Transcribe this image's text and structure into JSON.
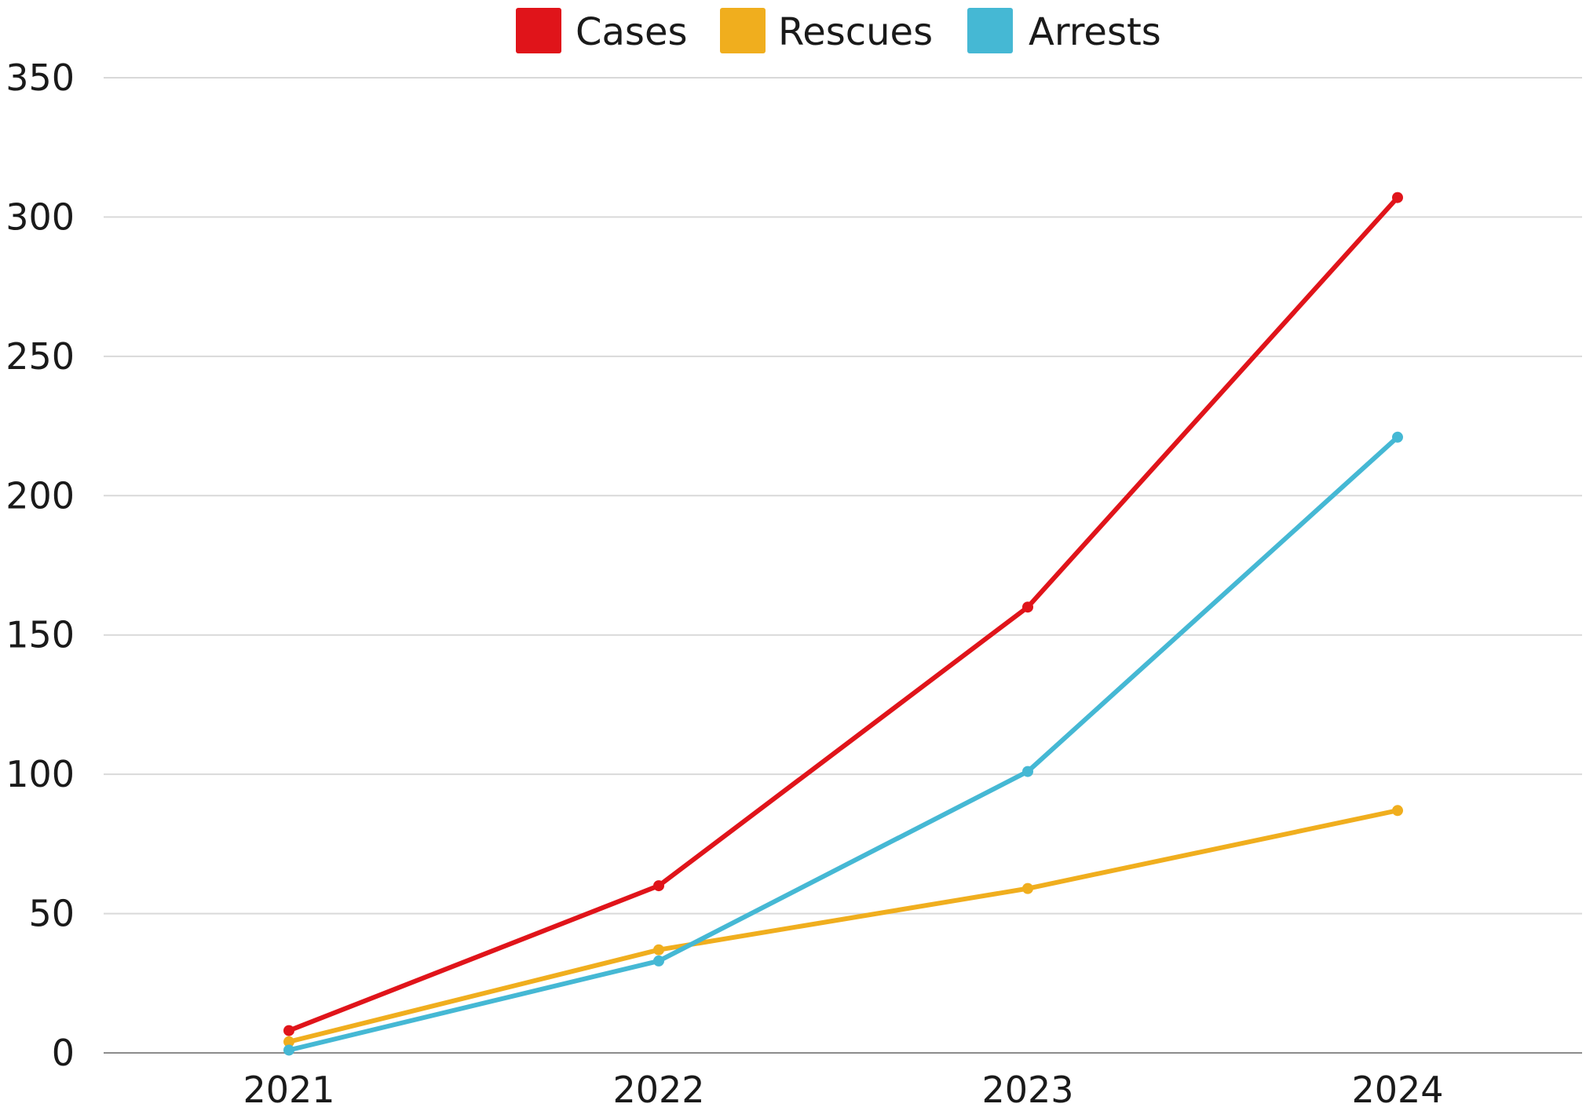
{
  "chart_data": {
    "type": "line",
    "title": "",
    "xlabel": "",
    "ylabel": "",
    "categories": [
      "2021",
      "2022",
      "2023",
      "2024"
    ],
    "ylim": [
      0,
      350
    ],
    "yticks": [
      0,
      50,
      100,
      150,
      200,
      250,
      300,
      350
    ],
    "grid": true,
    "legend": "top-center",
    "series": [
      {
        "name": "Cases",
        "color": "#e0141a",
        "values": [
          8,
          60,
          160,
          307
        ]
      },
      {
        "name": "Rescues",
        "color": "#f0ae1e",
        "values": [
          4,
          37,
          59,
          87
        ]
      },
      {
        "name": "Arrests",
        "color": "#45b8d4",
        "values": [
          1,
          33,
          101,
          221
        ]
      }
    ]
  }
}
